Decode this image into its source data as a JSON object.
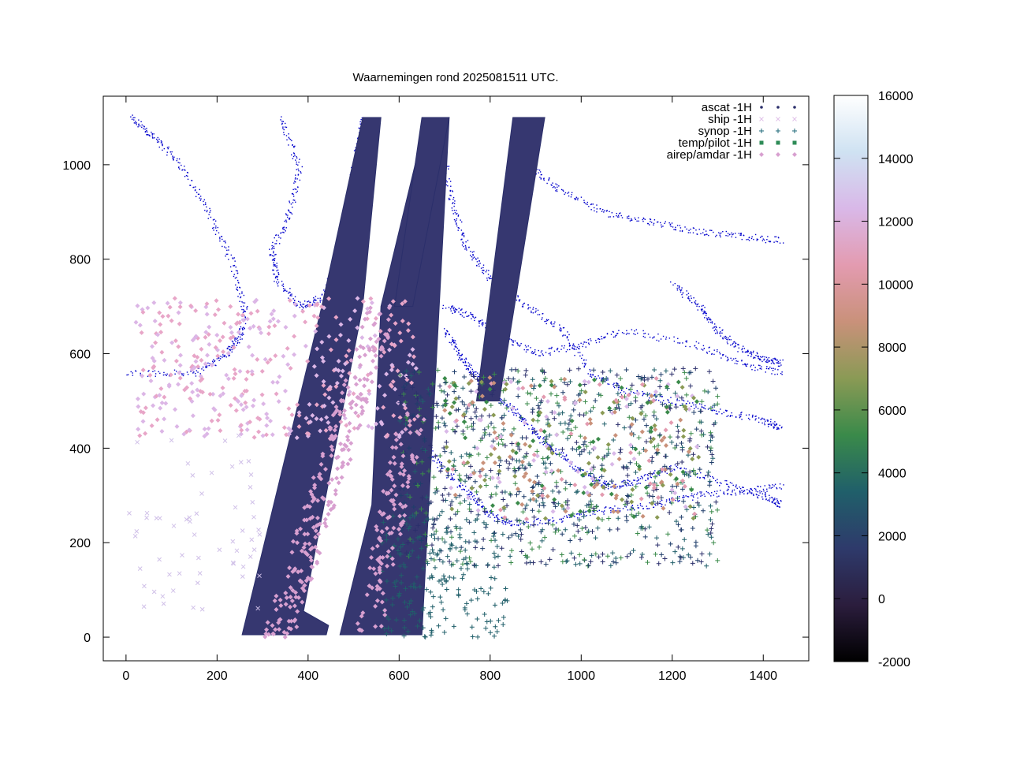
{
  "chart_data": {
    "type": "scatter",
    "title": "Waarnemingen rond 2025081511 UTC.",
    "xlabel": "",
    "ylabel": "",
    "xlim": [
      -50,
      1500
    ],
    "ylim": [
      -50,
      1145
    ],
    "x_ticks": [
      "0",
      "200",
      "400",
      "600",
      "800",
      "1000",
      "1200",
      "1400"
    ],
    "x_tick_values": [
      0,
      200,
      400,
      600,
      800,
      1000,
      1200,
      1400
    ],
    "y_ticks": [
      "0",
      "200",
      "400",
      "600",
      "800",
      "1000"
    ],
    "y_tick_values": [
      0,
      200,
      400,
      600,
      800,
      1000
    ],
    "grid": false,
    "legend_position": "top-right",
    "legend": [
      {
        "label": "ascat -1H",
        "marker": "dot",
        "color": "#2b2f6b"
      },
      {
        "label": "ship -1H",
        "marker": "x",
        "color": "#e0c0e8"
      },
      {
        "label": "synop -1H",
        "marker": "plus",
        "color": "#1f6a7a"
      },
      {
        "label": "temp/pilot -1H",
        "marker": "square",
        "color": "#2e8b57"
      },
      {
        "label": "airep/amdar -1H",
        "marker": "diamond",
        "color": "#d8a0d0"
      }
    ],
    "colorbar": {
      "min": -2000,
      "max": 16000,
      "ticks": [
        "16000",
        "14000",
        "12000",
        "10000",
        "8000",
        "6000",
        "4000",
        "2000",
        "0",
        "-2000"
      ],
      "tick_values": [
        16000,
        14000,
        12000,
        10000,
        8000,
        6000,
        4000,
        2000,
        0,
        -2000
      ],
      "palette": [
        "#000000",
        "#2b1d3d",
        "#2e3a6b",
        "#205f6a",
        "#3a8a4a",
        "#8a9a55",
        "#c9917a",
        "#e39bb0",
        "#d9b8e8",
        "#cfe2f2",
        "#ffffff"
      ]
    },
    "series": [
      {
        "name": "ascat -1H",
        "description_swaths": [
          {
            "polygon": [
              [
                255,
                5
              ],
              [
                440,
                5
              ],
              [
                445,
                25
              ],
              [
                390,
                55
              ],
              [
                520,
                700
              ],
              [
                560,
                1100
              ],
              [
                520,
                1100
              ],
              [
                430,
                700
              ]
            ]
          },
          {
            "polygon": [
              [
                470,
                5
              ],
              [
                650,
                5
              ],
              [
                710,
                1100
              ],
              [
                660,
                1100
              ],
              [
                560,
                700
              ],
              [
                540,
                280
              ]
            ]
          },
          {
            "polygon": [
              [
                590,
                700
              ],
              [
                650,
                1100
              ],
              [
                710,
                1100
              ],
              [
                630,
                700
              ]
            ]
          },
          {
            "polygon": [
              [
                770,
                500
              ],
              [
                850,
                1100
              ],
              [
                920,
                1100
              ],
              [
                820,
                500
              ]
            ]
          }
        ]
      }
    ]
  }
}
